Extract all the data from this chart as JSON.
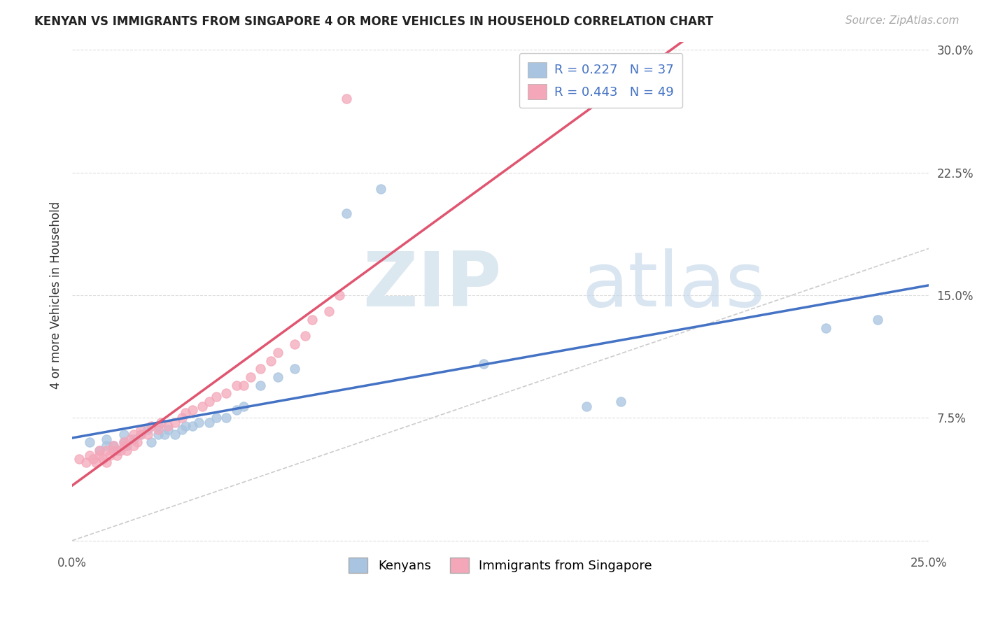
{
  "title": "KENYAN VS IMMIGRANTS FROM SINGAPORE 4 OR MORE VEHICLES IN HOUSEHOLD CORRELATION CHART",
  "source": "Source: ZipAtlas.com",
  "ylabel": "4 or more Vehicles in Household",
  "xlim": [
    0.0,
    0.25
  ],
  "ylim": [
    -0.005,
    0.305
  ],
  "xticks": [
    0.0,
    0.05,
    0.1,
    0.15,
    0.2,
    0.25
  ],
  "yticks": [
    0.0,
    0.075,
    0.15,
    0.225,
    0.3
  ],
  "legend_labels": [
    "Kenyans",
    "Immigrants from Singapore"
  ],
  "kenyan_R": 0.227,
  "kenyan_N": 37,
  "singapore_R": 0.443,
  "singapore_N": 49,
  "kenyan_color": "#a8c4e0",
  "singapore_color": "#f4a7b9",
  "kenyan_line_color": "#4472c4",
  "singapore_line_color": "#e05570",
  "diagonal_color": "#cccccc",
  "kenyan_x": [
    0.005,
    0.008,
    0.01,
    0.01,
    0.012,
    0.013,
    0.015,
    0.015,
    0.016,
    0.018,
    0.02,
    0.022,
    0.023,
    0.025,
    0.025,
    0.027,
    0.028,
    0.03,
    0.032,
    0.033,
    0.035,
    0.037,
    0.04,
    0.042,
    0.045,
    0.048,
    0.05,
    0.055,
    0.06,
    0.065,
    0.08,
    0.09,
    0.12,
    0.15,
    0.16,
    0.22,
    0.235
  ],
  "kenyan_y": [
    0.06,
    0.055,
    0.058,
    0.062,
    0.058,
    0.055,
    0.06,
    0.065,
    0.058,
    0.062,
    0.065,
    0.068,
    0.06,
    0.065,
    0.07,
    0.065,
    0.068,
    0.065,
    0.068,
    0.07,
    0.07,
    0.072,
    0.072,
    0.075,
    0.075,
    0.08,
    0.082,
    0.095,
    0.1,
    0.105,
    0.2,
    0.215,
    0.108,
    0.082,
    0.085,
    0.13,
    0.135
  ],
  "singapore_x": [
    0.002,
    0.004,
    0.005,
    0.006,
    0.007,
    0.008,
    0.008,
    0.009,
    0.01,
    0.01,
    0.011,
    0.012,
    0.012,
    0.013,
    0.014,
    0.015,
    0.015,
    0.016,
    0.017,
    0.018,
    0.018,
    0.019,
    0.02,
    0.02,
    0.022,
    0.023,
    0.025,
    0.026,
    0.028,
    0.03,
    0.032,
    0.033,
    0.035,
    0.038,
    0.04,
    0.042,
    0.045,
    0.048,
    0.05,
    0.052,
    0.055,
    0.058,
    0.06,
    0.065,
    0.068,
    0.07,
    0.075,
    0.078,
    0.08
  ],
  "singapore_y": [
    0.05,
    0.048,
    0.052,
    0.05,
    0.048,
    0.052,
    0.055,
    0.05,
    0.048,
    0.055,
    0.052,
    0.055,
    0.058,
    0.052,
    0.055,
    0.06,
    0.058,
    0.055,
    0.062,
    0.058,
    0.065,
    0.06,
    0.065,
    0.068,
    0.065,
    0.07,
    0.068,
    0.072,
    0.07,
    0.072,
    0.075,
    0.078,
    0.08,
    0.082,
    0.085,
    0.088,
    0.09,
    0.095,
    0.095,
    0.1,
    0.105,
    0.11,
    0.115,
    0.12,
    0.125,
    0.135,
    0.14,
    0.15,
    0.27
  ]
}
